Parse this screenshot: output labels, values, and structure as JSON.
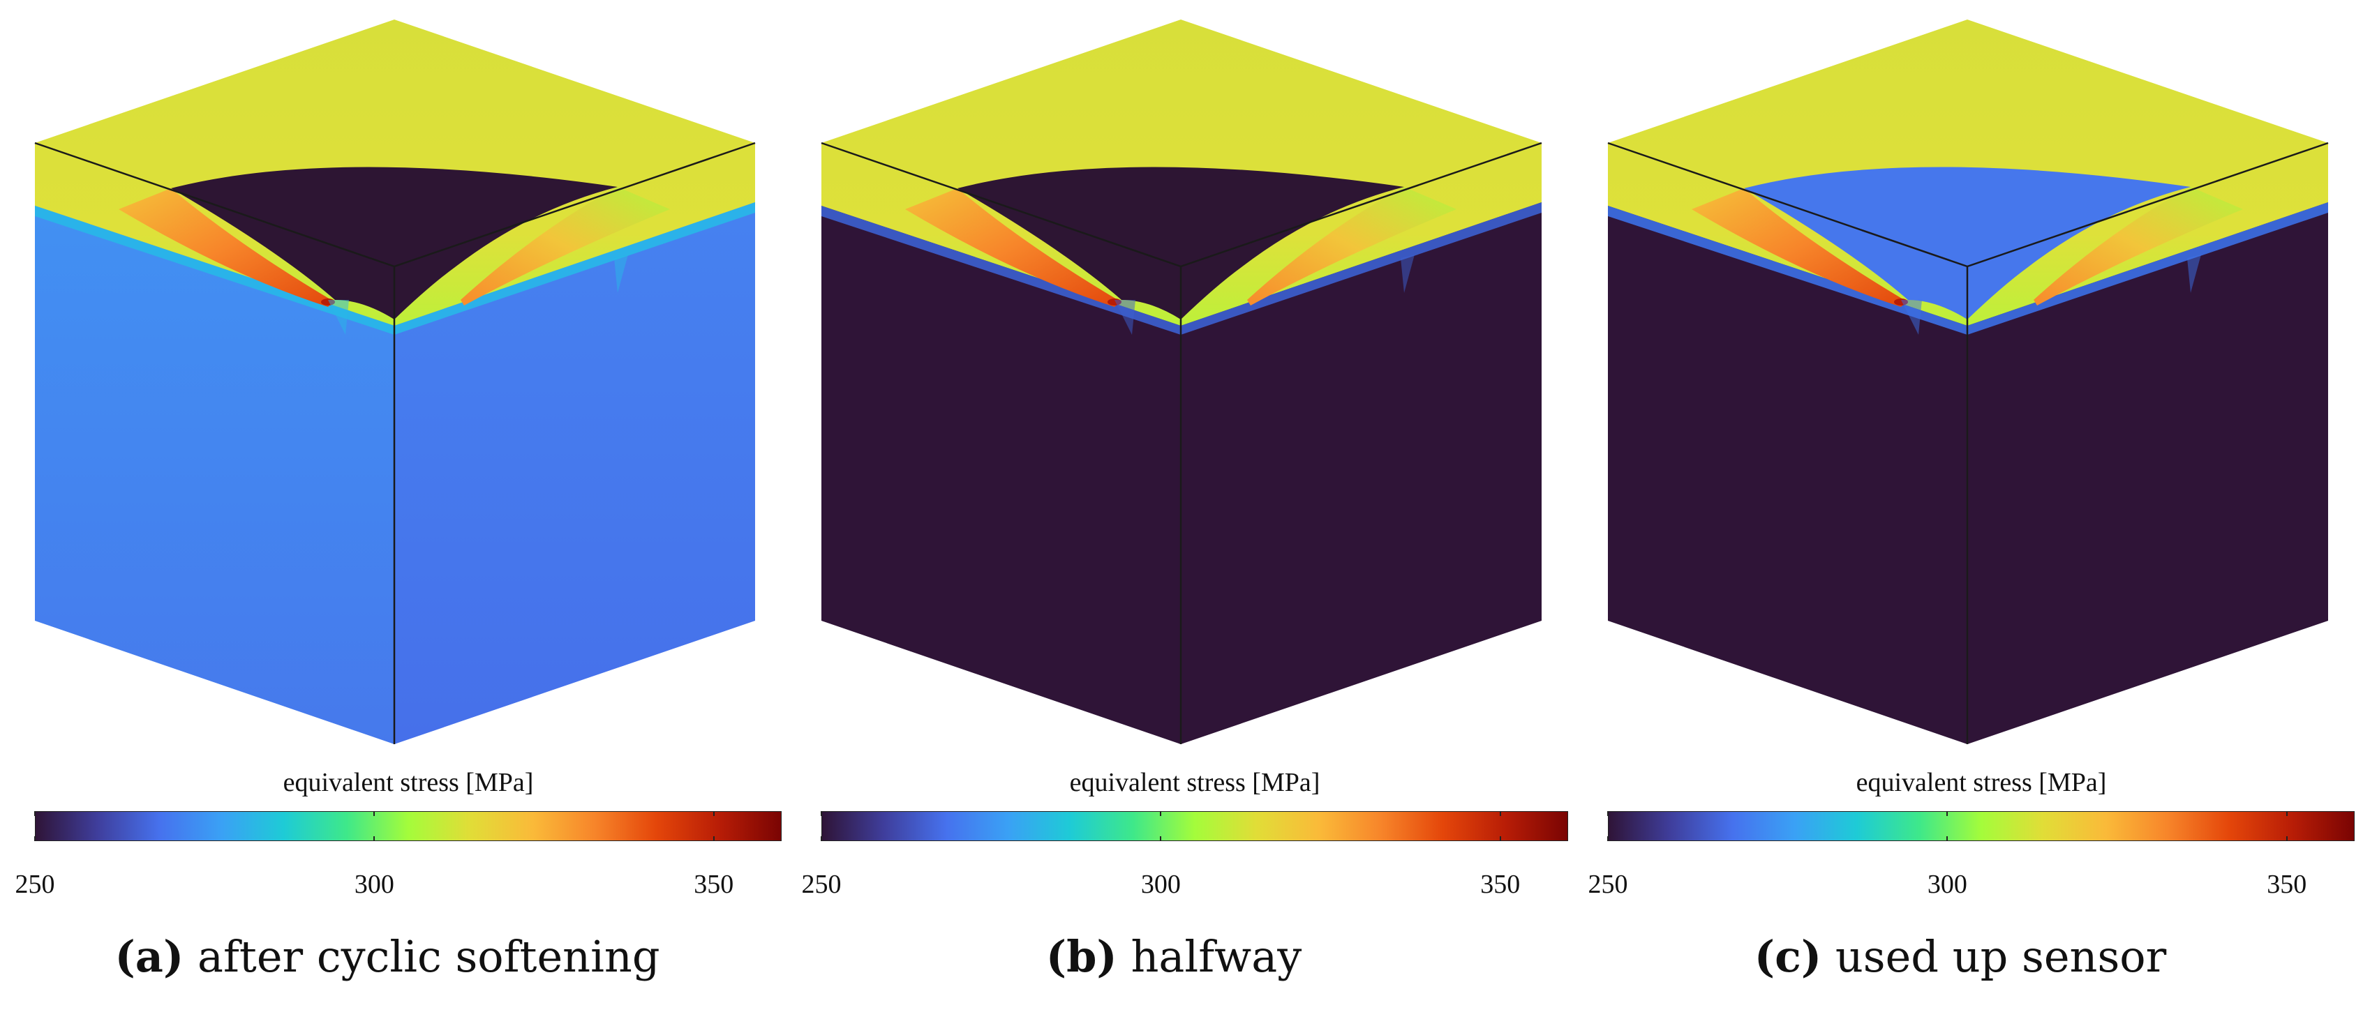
{
  "colormap": {
    "stops": [
      "#2f1437",
      "#3f3e9c",
      "#4672ee",
      "#3aa1f5",
      "#1ecbd6",
      "#3ee88a",
      "#a4fc3b",
      "#e1dd37",
      "#faba39",
      "#f7852a",
      "#e4460a",
      "#b81d06",
      "#7a0403"
    ],
    "colorbar_title": "equivalent stress [MPa]",
    "ticks": [
      "250",
      "300",
      "350"
    ],
    "tick_values": [
      250,
      300,
      350
    ],
    "range": [
      250,
      360
    ]
  },
  "panels": [
    {
      "label": "(a)",
      "caption": "after cyclic softening",
      "colors": {
        "top_edge": "#dee13a",
        "top_back": "#d8df3a",
        "notch": "#2d1533",
        "left_face_top": "#4291f3",
        "left_face_bottom": "#4679ec",
        "right_face_top": "#4682f0",
        "right_face_bottom": "#4670ea",
        "band_cyan": "#28b7e8",
        "crack_hot": "#e3470c"
      }
    },
    {
      "label": "(b)",
      "caption": "halfway",
      "colors": {
        "top_edge": "#dee13a",
        "top_back": "#d8df3a",
        "notch": "#2d1533",
        "left_face_top": "#2f1437",
        "left_face_bottom": "#2f1437",
        "right_face_top": "#2f1437",
        "right_face_bottom": "#2f1437",
        "band_cyan": "#3c5fd0",
        "crack_hot": "#e3470c"
      }
    },
    {
      "label": "(c)",
      "caption": "used up sensor",
      "colors": {
        "top_edge": "#dee13a",
        "top_back": "#d8df3a",
        "notch": "#4677ec",
        "left_face_top": "#2f1437",
        "left_face_bottom": "#2f1437",
        "right_face_top": "#2f1437",
        "right_face_bottom": "#2f1437",
        "band_cyan": "#3c6fe6",
        "crack_hot": "#e3470c"
      }
    }
  ]
}
